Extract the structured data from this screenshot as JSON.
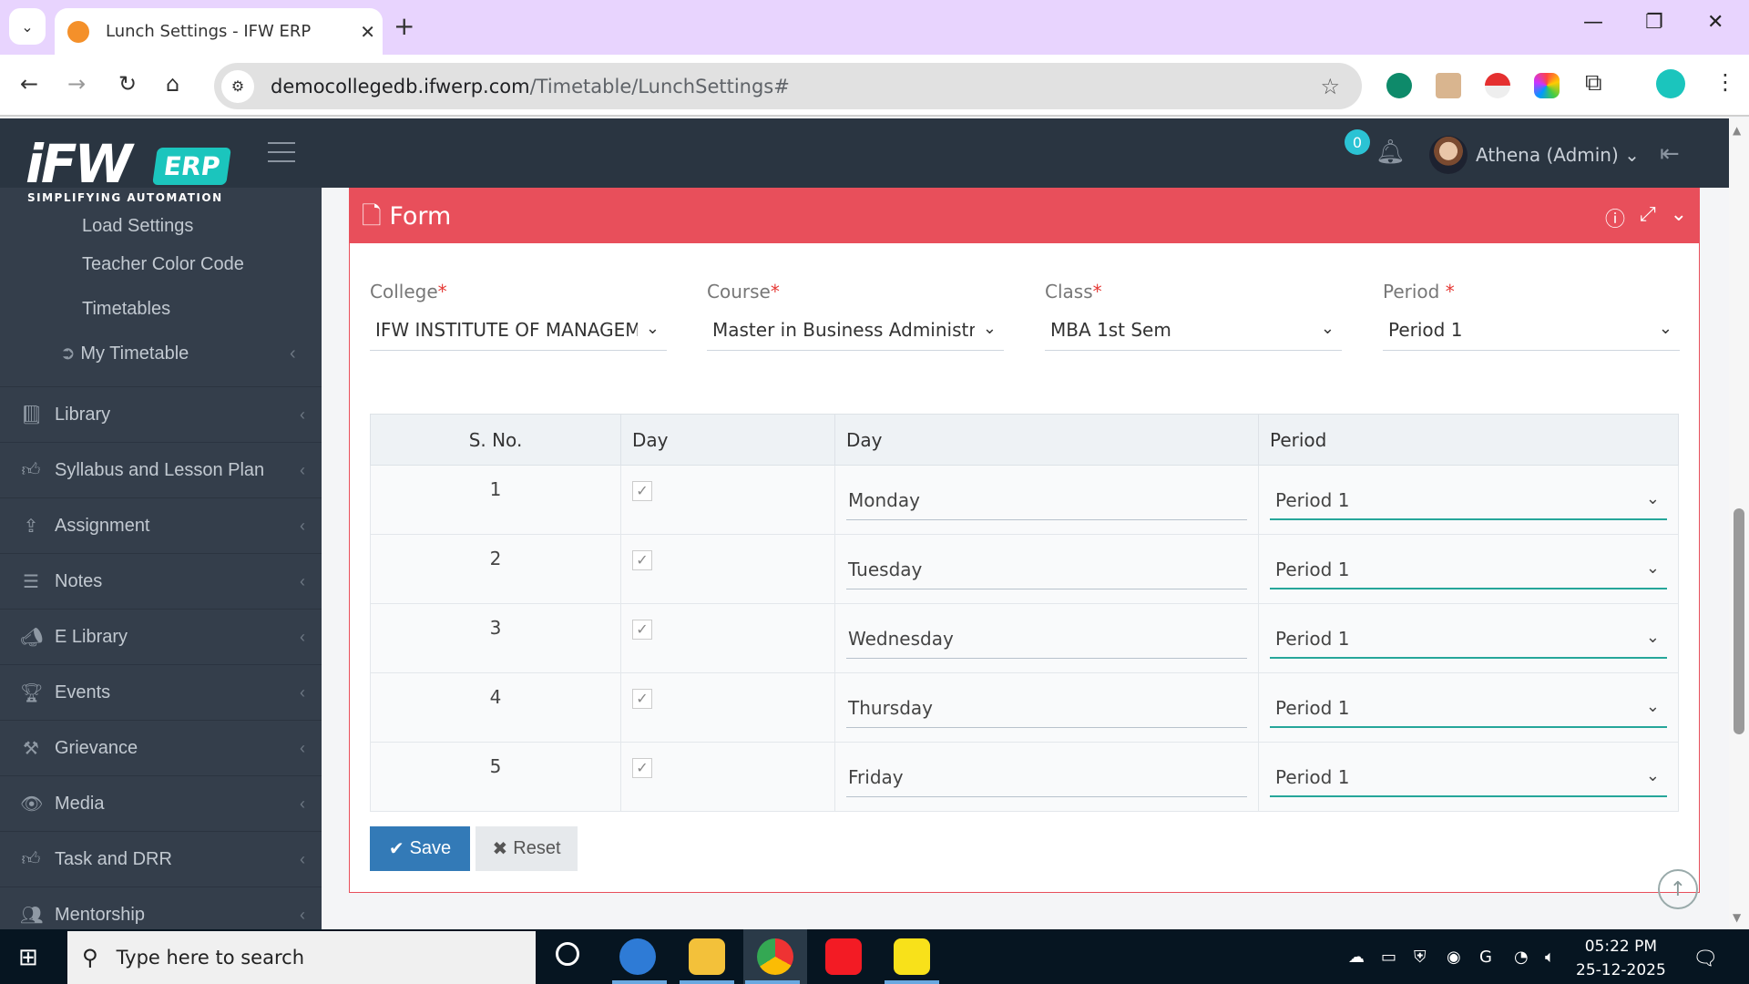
{
  "browser": {
    "tab_title": "Lunch Settings - IFW ERP",
    "url_host": "democollegedb.ifwerp.com",
    "url_path": "/Timetable/LunchSettings#"
  },
  "header": {
    "logo_text": "iFW",
    "logo_badge": "ERP",
    "logo_tagline": "SIMPLIFYING AUTOMATION",
    "notification_count": "0",
    "user_name": "Athena (Admin)"
  },
  "sidebar": {
    "sub_items": [
      {
        "label": "Load Settings"
      },
      {
        "label": "Teacher Color Code"
      },
      {
        "label": "Timetables"
      },
      {
        "label": "My Timetable"
      }
    ],
    "items": [
      {
        "label": "Library",
        "icon": "book-icon"
      },
      {
        "label": "Syllabus and Lesson Plan",
        "icon": "thumbs-up-icon"
      },
      {
        "label": "Assignment",
        "icon": "upload-icon"
      },
      {
        "label": "Notes",
        "icon": "list-icon"
      },
      {
        "label": "E Library",
        "icon": "bullhorn-icon"
      },
      {
        "label": "Events",
        "icon": "trophy-icon"
      },
      {
        "label": "Grievance",
        "icon": "gavel-icon"
      },
      {
        "label": "Media",
        "icon": "eye-icon"
      },
      {
        "label": "Task and DRR",
        "icon": "thumbs-up-icon"
      },
      {
        "label": "Mentorship",
        "icon": "users-icon"
      }
    ]
  },
  "form": {
    "title": "Form",
    "accent": "#e84f5b",
    "fields": [
      {
        "label": "College",
        "value": "IFW INSTITUTE OF MANAGEMENT"
      },
      {
        "label": "Course",
        "value": "Master in Business Administration"
      },
      {
        "label": "Class",
        "value": "MBA 1st Sem"
      },
      {
        "label": "Period",
        "value": "Period 1"
      }
    ],
    "table": {
      "headers": [
        "S. No.",
        "Day",
        "Day",
        "Period"
      ],
      "rows": [
        {
          "sno": "1",
          "checked": true,
          "day": "Monday",
          "period": "Period 1"
        },
        {
          "sno": "2",
          "checked": true,
          "day": "Tuesday",
          "period": "Period 1"
        },
        {
          "sno": "3",
          "checked": true,
          "day": "Wednesday",
          "period": "Period 1"
        },
        {
          "sno": "4",
          "checked": true,
          "day": "Thursday",
          "period": "Period 1"
        },
        {
          "sno": "5",
          "checked": true,
          "day": "Friday",
          "period": "Period 1"
        }
      ]
    },
    "save_label": "Save",
    "reset_label": "Reset"
  },
  "taskbar": {
    "search_placeholder": "Type here to search",
    "time": "05:22 PM",
    "date": "25-12-2025"
  }
}
